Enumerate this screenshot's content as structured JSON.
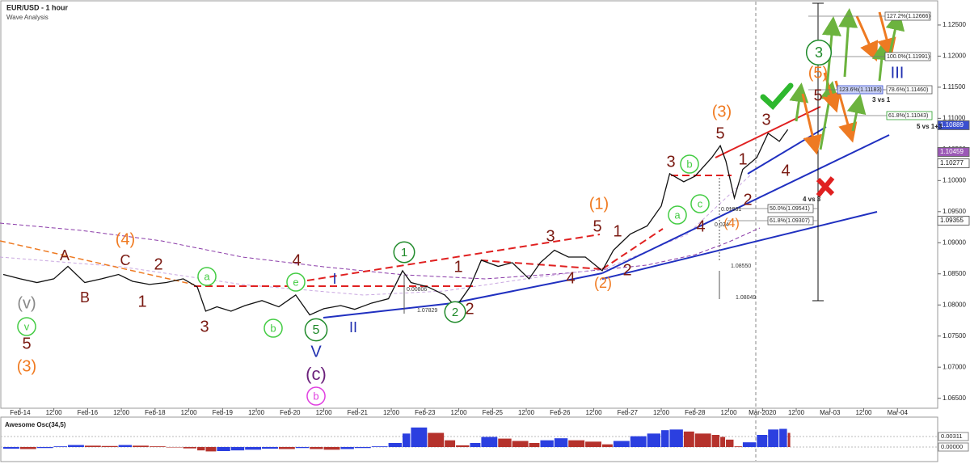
{
  "chart_data": {
    "type": "line",
    "title": "EUR/USD - 1 hour",
    "subtitle": "Wave Analysis",
    "x": [
      0,
      6,
      12,
      18,
      23,
      29,
      35,
      41,
      46,
      52,
      58,
      64,
      69,
      72,
      76,
      81,
      86,
      92,
      98,
      104,
      109,
      114,
      120,
      125,
      131,
      137,
      142,
      145,
      151,
      157,
      161,
      166,
      170,
      176,
      181,
      187,
      191,
      196,
      201,
      207,
      213,
      217,
      223,
      229,
      234,
      237,
      242,
      246,
      252,
      255,
      257,
      260,
      263,
      268,
      272,
      276,
      279
    ],
    "series": [
      {
        "color": "#111111",
        "values": [
          1.0849,
          1.0842,
          1.0836,
          1.0842,
          1.0862,
          1.0836,
          1.0842,
          1.0849,
          1.0838,
          1.0833,
          1.0836,
          1.0842,
          1.0829,
          1.079,
          1.0797,
          1.079,
          1.0799,
          1.0807,
          1.0797,
          1.0816,
          1.0784,
          1.0794,
          1.0799,
          1.0793,
          1.0803,
          1.081,
          1.0855,
          1.0836,
          1.0829,
          1.0816,
          1.0797,
          1.0829,
          1.0872,
          1.0862,
          1.0868,
          1.0842,
          1.0868,
          1.0888,
          1.0877,
          1.0877,
          1.0855,
          1.0888,
          1.0914,
          1.0927,
          1.0959,
          1.1011,
          1.0998,
          1.1007,
          1.1037,
          1.1056,
          1.1031,
          1.0972,
          1.1018,
          1.1037,
          1.1076,
          1.1063,
          1.1082
        ]
      }
    ],
    "xlim": [
      0,
      330
    ],
    "xticks": [
      {
        "value": 6,
        "label": "Feb-14"
      },
      {
        "value": 18,
        "label": "12:00"
      },
      {
        "value": 30,
        "label": "Feb-16"
      },
      {
        "value": 42,
        "label": "12:00"
      },
      {
        "value": 54,
        "label": "Feb-18"
      },
      {
        "value": 66,
        "label": "12:00"
      },
      {
        "value": 78,
        "label": "Feb-19"
      },
      {
        "value": 90,
        "label": "12:00"
      },
      {
        "value": 102,
        "label": "Feb-20"
      },
      {
        "value": 114,
        "label": "12:00"
      },
      {
        "value": 126,
        "label": "Feb-21"
      },
      {
        "value": 138,
        "label": "12:00"
      },
      {
        "value": 150,
        "label": "Feb-23"
      },
      {
        "value": 162,
        "label": "12:00"
      },
      {
        "value": 174,
        "label": "Feb-25"
      },
      {
        "value": 186,
        "label": "12:00"
      },
      {
        "value": 198,
        "label": "Feb-26"
      },
      {
        "value": 210,
        "label": "12:00"
      },
      {
        "value": 222,
        "label": "Feb-27"
      },
      {
        "value": 234,
        "label": "12:00"
      },
      {
        "value": 246,
        "label": "Feb-28"
      },
      {
        "value": 258,
        "label": "12:00"
      },
      {
        "value": 270,
        "label": "Mar-2020"
      },
      {
        "value": 282,
        "label": "12:00"
      },
      {
        "value": 294,
        "label": "Mar-03"
      },
      {
        "value": 306,
        "label": "12:00"
      },
      {
        "value": 318,
        "label": "Mar-04"
      }
    ],
    "ylim": [
      1.0634,
      1.1285
    ],
    "yticks": [
      {
        "value": 1.065,
        "label": "1.06500"
      },
      {
        "value": 1.07,
        "label": "1.07000"
      },
      {
        "value": 1.075,
        "label": "1.07500"
      },
      {
        "value": 1.08,
        "label": "1.08000"
      },
      {
        "value": 1.085,
        "label": "1.08500"
      },
      {
        "value": 1.09,
        "label": "1.09000"
      },
      {
        "value": 1.095,
        "label": "1.09500"
      },
      {
        "value": 1.1,
        "label": "1.10000"
      },
      {
        "value": 1.105,
        "label": "1.10500"
      },
      {
        "value": 1.11,
        "label": "1.11000"
      },
      {
        "value": 1.115,
        "label": "1.11500"
      },
      {
        "value": 1.12,
        "label": "1.12000"
      },
      {
        "value": 1.125,
        "label": "1.12500"
      }
    ],
    "price_tags": [
      {
        "value": 1.10889,
        "color": "#3a4fd0"
      },
      {
        "value": 1.10459,
        "color": "#9b59b6"
      },
      {
        "value": 1.10277,
        "color": "#ffffff"
      },
      {
        "value": 1.09355,
        "color": "#ffffff"
      }
    ],
    "annotations": [
      "(v)",
      "v",
      "5",
      "(3)",
      "A",
      "B",
      "(4)",
      "C",
      "2",
      "1",
      "a",
      "3",
      "b",
      "4",
      "e",
      "I",
      "5",
      "V",
      "II",
      "(c)",
      "b",
      "1",
      "1",
      "2",
      "2",
      "3",
      "4",
      "(2)",
      "2",
      "5",
      "1",
      "(1)",
      "3",
      "b",
      "a",
      "c",
      "4",
      "(3)",
      "5",
      "1",
      "2",
      "(4)",
      "3",
      "4",
      "(5)",
      "5",
      "3",
      "III",
      "3 vs 1",
      "5 vs 1+3",
      "4 vs 3",
      "0.00806",
      "1.07829",
      "0.01981",
      "0.024",
      "1.08550",
      "1.08049"
    ],
    "fib_labels": [
      "127.2%(1.12666)",
      "100.0%(1.11991)",
      "78.6%(1.11460)",
      "123.6%(1.11183)",
      "61.8%(1.11043)",
      "50.0%(1.09541)",
      "61.8%(1.09307)"
    ],
    "oscillator": {
      "title": "Awesome Osc(34,5)",
      "up_color": "#2b3fe0",
      "down_color": "#b5322c",
      "values": [
        -0.0005,
        -0.0006,
        -0.0003,
        0.0002,
        0.0006,
        0.0004,
        0.0003,
        0.0006,
        0.0004,
        0.0002,
        -0.0001,
        -0.0004,
        -0.001,
        -0.0013,
        -0.0012,
        -0.001,
        -0.0008,
        -0.0005,
        -0.0006,
        -0.0003,
        -0.0006,
        -0.0008,
        -0.0006,
        -0.0003,
        0.0002,
        0.0012,
        0.004,
        0.0058,
        0.0042,
        0.002,
        0.0005,
        0.0012,
        0.003,
        0.0025,
        0.0018,
        0.0012,
        0.002,
        0.0026,
        0.002,
        0.0016,
        0.0008,
        0.0018,
        0.0032,
        0.004,
        0.005,
        0.0052,
        0.0046,
        0.004,
        0.0036,
        0.003,
        0.0022,
        0.0002,
        0.0014,
        0.0036,
        0.0052,
        0.0054,
        0.0042
      ],
      "ylim": [
        -0.0036,
        0.0084
      ],
      "yticks": [
        0.00311,
        {
          "value": 0,
          "label": "0.00000"
        }
      ]
    }
  }
}
